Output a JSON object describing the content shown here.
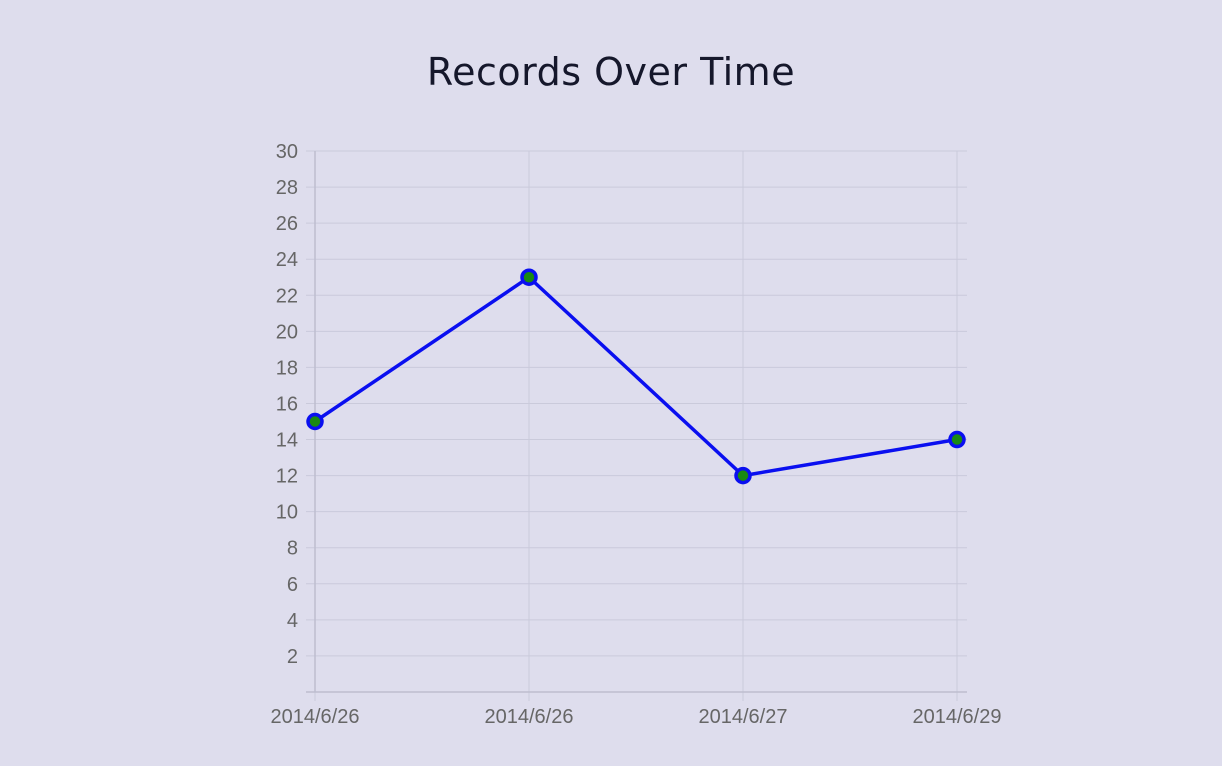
{
  "chart_data": {
    "type": "line",
    "title": "Records Over Time",
    "xlabel": "",
    "ylabel": "",
    "categories": [
      "2014/6/26",
      "2014/6/26",
      "2014/6/27",
      "2014/6/29"
    ],
    "series": [
      {
        "values": [
          15,
          23,
          12,
          14
        ]
      }
    ],
    "ylim": [
      0,
      30
    ],
    "yticks": [
      2,
      4,
      6,
      8,
      10,
      12,
      14,
      16,
      18,
      20,
      22,
      24,
      26,
      28,
      30
    ],
    "grid": true,
    "legend": "none",
    "colors": {
      "line": "#0a0ff0",
      "marker_fill": "#1a8a12",
      "marker_stroke": "#0a0ff0",
      "background": "#dedded"
    }
  }
}
